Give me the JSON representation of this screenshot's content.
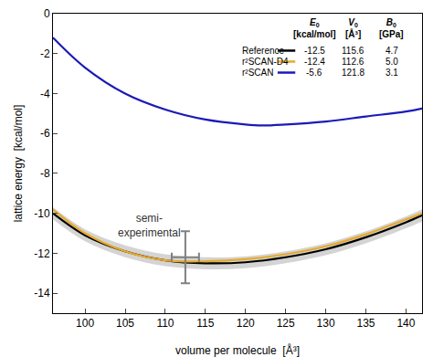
{
  "chart_data": {
    "type": "line",
    "xlabel": "volume per molecule  [Å³]",
    "ylabel": "lattice energy  [kcal/mol]",
    "xlim": [
      96,
      142
    ],
    "ylim": [
      -15,
      0
    ],
    "xticks": [
      100,
      105,
      110,
      115,
      120,
      125,
      130,
      135,
      140
    ],
    "yticks": [
      -14,
      -12,
      -10,
      -8,
      -6,
      -4,
      -2,
      0
    ],
    "grid": false,
    "table_header": [
      {
        "symbol": "E",
        "subscript": "0",
        "unit": "[kcal/mol]"
      },
      {
        "symbol": "V",
        "subscript": "0",
        "unit": "[Å³]"
      },
      {
        "symbol": "B",
        "subscript": "0",
        "unit": "[GPa]"
      }
    ],
    "series": [
      {
        "name": "Reference",
        "color": "#000000",
        "line_style": "solid",
        "x": [
          96,
          100,
          105,
          110,
          115,
          120,
          125,
          130,
          135,
          140,
          142
        ],
        "values": [
          -10.0,
          -11.1,
          -11.9,
          -12.35,
          -12.5,
          -12.45,
          -12.2,
          -11.8,
          -11.2,
          -10.45,
          -10.1
        ],
        "uncertainty": [
          0.3,
          0.3,
          0.3,
          0.3,
          0.3,
          0.3,
          0.3,
          0.3,
          0.3,
          0.3,
          0.3
        ],
        "table_values": [
          -12.5,
          115.6,
          4.7
        ],
        "table_labels": [
          "-12.5",
          "115.6",
          "4.7"
        ]
      },
      {
        "name": "r²SCAN-D4",
        "color": "#e8a92a",
        "line_style": "solid",
        "x": [
          96,
          100,
          105,
          110,
          115,
          120,
          125,
          130,
          135,
          140,
          142
        ],
        "values": [
          -9.8,
          -11.0,
          -11.9,
          -12.35,
          -12.4,
          -12.3,
          -12.05,
          -11.65,
          -11.05,
          -10.3,
          -10.0
        ],
        "table_values": [
          -12.4,
          112.6,
          5.0
        ],
        "table_labels": [
          "-12.4",
          "112.6",
          "5.0"
        ]
      },
      {
        "name": "r²SCAN",
        "color": "#1a1ab8",
        "line_style": "solid",
        "x": [
          96,
          100,
          105,
          110,
          115,
          120,
          122,
          125,
          130,
          135,
          140,
          142
        ],
        "values": [
          -1.2,
          -2.7,
          -4.0,
          -4.8,
          -5.3,
          -5.55,
          -5.6,
          -5.55,
          -5.4,
          -5.15,
          -4.9,
          -4.75
        ],
        "table_values": [
          -5.6,
          121.8,
          3.1
        ],
        "table_labels": [
          "-5.6",
          "121.8",
          "3.1"
        ]
      }
    ],
    "point": {
      "label_lines": [
        "semi-",
        "experimental"
      ],
      "x": 112.5,
      "y": -12.2,
      "x_error": 1.7,
      "y_error": 1.3,
      "color": "#808080"
    }
  }
}
